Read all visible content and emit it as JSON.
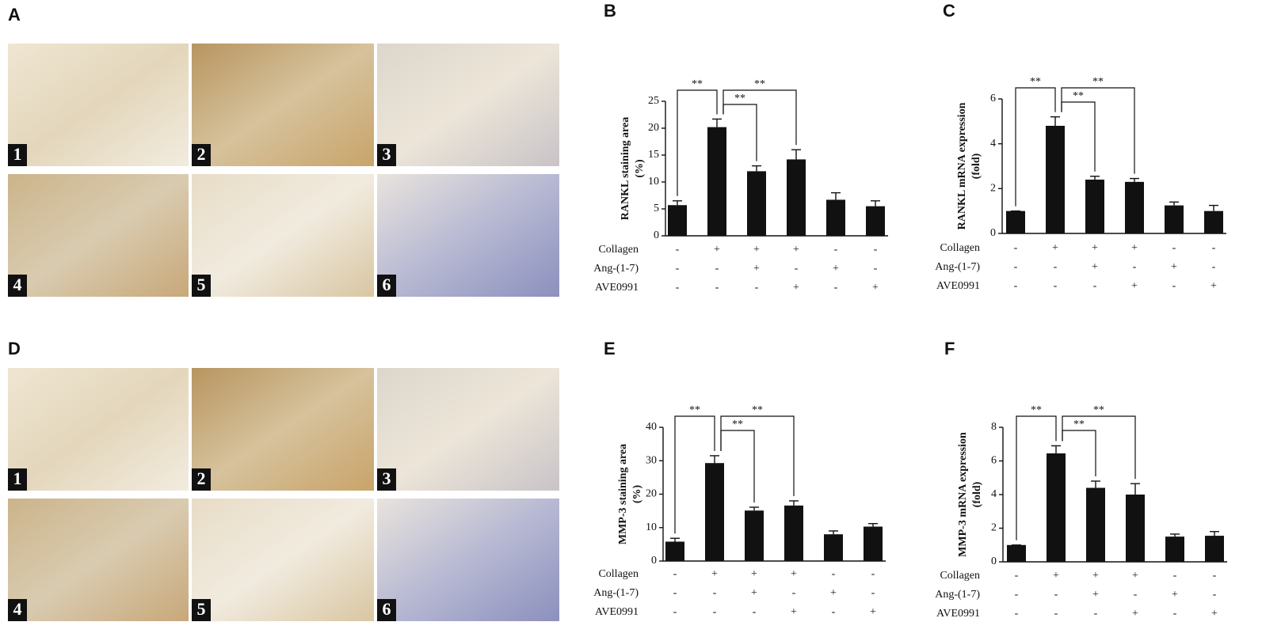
{
  "image_panels": [
    {
      "label": "A",
      "tiles": [
        "1",
        "2",
        "3",
        "4",
        "5",
        "6"
      ]
    },
    {
      "label": "D",
      "tiles": [
        "1",
        "2",
        "3",
        "4",
        "5",
        "6"
      ]
    }
  ],
  "chart_data": [
    {
      "type": "bar",
      "panel_label": "B",
      "ylabel": "RANKL staining area",
      "ylabel_unit": "(%)",
      "values": [
        5.7,
        20.2,
        12.0,
        14.2,
        6.7,
        5.5
      ],
      "errors": [
        0.8,
        1.5,
        1.0,
        1.8,
        1.3,
        1.0
      ],
      "color": "#111111",
      "ylim": [
        0,
        25
      ],
      "yticks": [
        0,
        5,
        10,
        15,
        20,
        25
      ],
      "significance": [
        {
          "from": 0,
          "to": 1,
          "label": "**"
        },
        {
          "from": 1,
          "to": 2,
          "label": "**"
        },
        {
          "from": 1,
          "to": 3,
          "label": "**"
        }
      ],
      "conditions": [
        {
          "name": "Collagen",
          "signs": [
            "-",
            "+",
            "+",
            "+",
            "-",
            "-"
          ]
        },
        {
          "name": "Ang-(1-7)",
          "signs": [
            "-",
            "-",
            "+",
            "-",
            "+",
            "-"
          ]
        },
        {
          "name": "AVE0991",
          "signs": [
            "-",
            "-",
            "-",
            "+",
            "-",
            "+"
          ]
        }
      ]
    },
    {
      "type": "bar",
      "panel_label": "C",
      "ylabel": "RANKL mRNA expression",
      "ylabel_unit": "(fold)",
      "values": [
        1.0,
        4.8,
        2.4,
        2.3,
        1.25,
        1.0
      ],
      "errors": [
        0,
        0.4,
        0.15,
        0.15,
        0.15,
        0.25
      ],
      "color": "#111111",
      "ylim": [
        0,
        6
      ],
      "yticks": [
        0,
        2,
        4,
        6
      ],
      "significance": [
        {
          "from": 0,
          "to": 1,
          "label": "**"
        },
        {
          "from": 1,
          "to": 2,
          "label": "**"
        },
        {
          "from": 1,
          "to": 3,
          "label": "**"
        }
      ],
      "conditions": [
        {
          "name": "Collagen",
          "signs": [
            "-",
            "+",
            "+",
            "+",
            "-",
            "-"
          ]
        },
        {
          "name": "Ang-(1-7)",
          "signs": [
            "-",
            "-",
            "+",
            "-",
            "+",
            "-"
          ]
        },
        {
          "name": "AVE0991",
          "signs": [
            "-",
            "-",
            "-",
            "+",
            "-",
            "+"
          ]
        }
      ]
    },
    {
      "type": "bar",
      "panel_label": "E",
      "ylabel": "MMP-3 staining area",
      "ylabel_unit": "(%)",
      "values": [
        5.8,
        29.3,
        15.1,
        16.6,
        8.0,
        10.3
      ],
      "errors": [
        1.0,
        2.2,
        1.0,
        1.4,
        1.0,
        0.9
      ],
      "color": "#111111",
      "ylim": [
        0,
        40
      ],
      "yticks": [
        0,
        10,
        20,
        30,
        40
      ],
      "significance": [
        {
          "from": 0,
          "to": 1,
          "label": "**"
        },
        {
          "from": 1,
          "to": 2,
          "label": "**"
        },
        {
          "from": 1,
          "to": 3,
          "label": "**"
        }
      ],
      "conditions": [
        {
          "name": "Collagen",
          "signs": [
            "-",
            "+",
            "+",
            "+",
            "-",
            "-"
          ]
        },
        {
          "name": "Ang-(1-7)",
          "signs": [
            "-",
            "-",
            "+",
            "-",
            "+",
            "-"
          ]
        },
        {
          "name": "AVE0991",
          "signs": [
            "-",
            "-",
            "-",
            "+",
            "-",
            "+"
          ]
        }
      ]
    },
    {
      "type": "bar",
      "panel_label": "F",
      "ylabel": "MMP-3 mRNA expression",
      "ylabel_unit": "(fold)",
      "values": [
        1.0,
        6.45,
        4.4,
        4.0,
        1.5,
        1.55
      ],
      "errors": [
        0,
        0.45,
        0.4,
        0.65,
        0.15,
        0.25
      ],
      "color": "#111111",
      "ylim": [
        0,
        8
      ],
      "yticks": [
        0,
        2,
        4,
        6,
        8
      ],
      "significance": [
        {
          "from": 0,
          "to": 1,
          "label": "**"
        },
        {
          "from": 1,
          "to": 2,
          "label": "**"
        },
        {
          "from": 1,
          "to": 3,
          "label": "**"
        }
      ],
      "conditions": [
        {
          "name": "Collagen",
          "signs": [
            "-",
            "+",
            "+",
            "+",
            "-",
            "-"
          ]
        },
        {
          "name": "Ang-(1-7)",
          "signs": [
            "-",
            "-",
            "+",
            "-",
            "+",
            "-"
          ]
        },
        {
          "name": "AVE0991",
          "signs": [
            "-",
            "-",
            "-",
            "+",
            "-",
            "+"
          ]
        }
      ]
    }
  ]
}
